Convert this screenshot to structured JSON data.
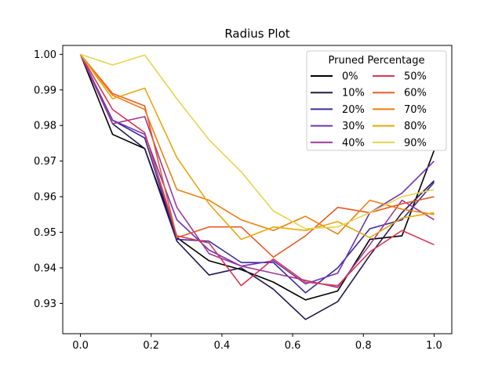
{
  "chart_data": {
    "type": "line",
    "title": "Radius Plot",
    "xlabel": "",
    "ylabel": "",
    "xlim": [
      -0.05,
      1.05
    ],
    "ylim": [
      0.9215,
      1.0025
    ],
    "grid": false,
    "x_ticks": [
      0.0,
      0.2,
      0.4,
      0.6,
      0.8,
      1.0
    ],
    "x_tick_labels": [
      "0.0",
      "0.2",
      "0.4",
      "0.6",
      "0.8",
      "1.0"
    ],
    "y_ticks": [
      0.93,
      0.94,
      0.95,
      0.96,
      0.97,
      0.98,
      0.99,
      1.0
    ],
    "y_tick_labels": [
      "0.93",
      "0.94",
      "0.95",
      "0.96",
      "0.97",
      "0.98",
      "0.99",
      "1.00"
    ],
    "legend": {
      "title": "Pruned Percentage",
      "placement": "top-right",
      "columns": 2
    },
    "x": [
      0.0,
      0.0909,
      0.1818,
      0.2727,
      0.3636,
      0.4545,
      0.5455,
      0.6364,
      0.7273,
      0.8182,
      0.9091,
      1.0
    ],
    "series": [
      {
        "name": "0%",
        "color": "#000000",
        "values": [
          1.0,
          0.9775,
          0.9735,
          0.9485,
          0.942,
          0.9395,
          0.936,
          0.931,
          0.9335,
          0.948,
          0.949,
          0.973
        ]
      },
      {
        "name": "10%",
        "color": "#1f1a4d",
        "values": [
          1.0,
          0.9805,
          0.9735,
          0.9475,
          0.938,
          0.94,
          0.934,
          0.9255,
          0.9305,
          0.9435,
          0.9555,
          0.9645
        ]
      },
      {
        "name": "20%",
        "color": "#3a2ba0",
        "values": [
          1.0,
          0.9815,
          0.9765,
          0.948,
          0.9475,
          0.9415,
          0.9415,
          0.933,
          0.94,
          0.951,
          0.9535,
          0.964
        ]
      },
      {
        "name": "30%",
        "color": "#6b35b5",
        "values": [
          1.0,
          0.9815,
          0.9775,
          0.9535,
          0.945,
          0.9405,
          0.942,
          0.9355,
          0.9385,
          0.9555,
          0.961,
          0.97
        ]
      },
      {
        "name": "40%",
        "color": "#a03799",
        "values": [
          1.0,
          0.9805,
          0.9825,
          0.957,
          0.944,
          0.9405,
          0.9385,
          0.9365,
          0.9345,
          0.9465,
          0.959,
          0.9535
        ]
      },
      {
        "name": "50%",
        "color": "#da3553",
        "values": [
          1.0,
          0.9845,
          0.978,
          0.949,
          0.947,
          0.935,
          0.9425,
          0.936,
          0.935,
          0.9445,
          0.9505,
          0.9465
        ]
      },
      {
        "name": "60%",
        "color": "#e95a27",
        "values": [
          1.0,
          0.989,
          0.9855,
          0.9485,
          0.9515,
          0.9515,
          0.943,
          0.949,
          0.957,
          0.9555,
          0.958,
          0.96
        ]
      },
      {
        "name": "70%",
        "color": "#ed7f0b",
        "values": [
          1.0,
          0.9885,
          0.9845,
          0.962,
          0.959,
          0.9535,
          0.9505,
          0.9545,
          0.9495,
          0.959,
          0.9565,
          0.955
        ]
      },
      {
        "name": "80%",
        "color": "#e8a80e",
        "values": [
          1.0,
          0.9875,
          0.9905,
          0.971,
          0.958,
          0.948,
          0.9515,
          0.9505,
          0.953,
          0.9485,
          0.954,
          0.9555
        ]
      },
      {
        "name": "90%",
        "color": "#e8d34e",
        "values": [
          1.0,
          0.997,
          0.9998,
          0.9875,
          0.976,
          0.967,
          0.956,
          0.951,
          0.9515,
          0.9555,
          0.96,
          0.962
        ]
      }
    ]
  }
}
